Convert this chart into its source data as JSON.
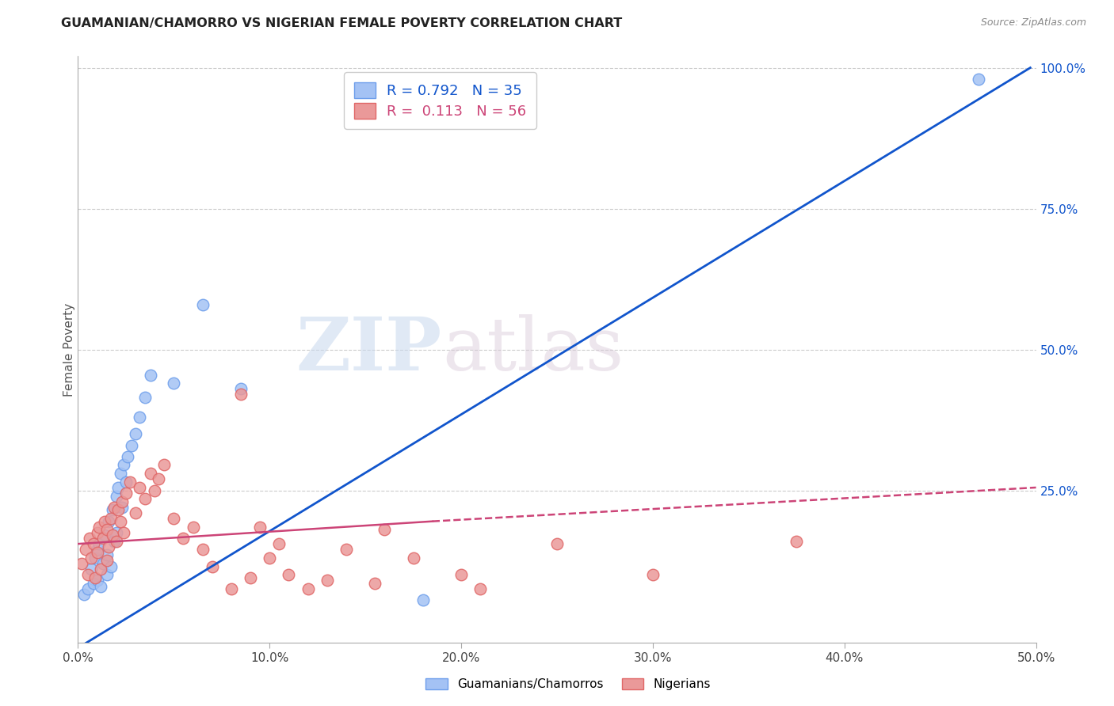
{
  "title": "GUAMANIAN/CHAMORRO VS NIGERIAN FEMALE POVERTY CORRELATION CHART",
  "source": "Source: ZipAtlas.com",
  "ylabel": "Female Poverty",
  "xlim": [
    0.0,
    0.5
  ],
  "ylim": [
    -0.02,
    1.02
  ],
  "xtick_labels": [
    "0.0%",
    "10.0%",
    "20.0%",
    "30.0%",
    "40.0%",
    "50.0%"
  ],
  "xtick_vals": [
    0.0,
    0.1,
    0.2,
    0.3,
    0.4,
    0.5
  ],
  "ytick_labels": [
    "100.0%",
    "75.0%",
    "50.0%",
    "25.0%"
  ],
  "ytick_vals": [
    1.0,
    0.75,
    0.5,
    0.25
  ],
  "blue_R": "0.792",
  "blue_N": "35",
  "pink_R": "0.113",
  "pink_N": "56",
  "legend_label_blue": "Guamanians/Chamorros",
  "legend_label_pink": "Nigerians",
  "watermark_zip": "ZIP",
  "watermark_atlas": "atlas",
  "blue_color": "#a4c2f4",
  "pink_color": "#ea9999",
  "blue_edge_color": "#6d9eeb",
  "pink_edge_color": "#e06666",
  "blue_line_color": "#1155cc",
  "pink_line_color": "#cc4477",
  "background_color": "#ffffff",
  "grid_color": "#cccccc",
  "blue_line_x0": -0.005,
  "blue_line_x1": 0.497,
  "blue_line_y0": -0.04,
  "blue_line_y1": 1.0,
  "pink_line_x0": 0.0,
  "pink_line_solid_x1": 0.185,
  "pink_line_dash_x1": 0.5,
  "pink_line_y0": 0.155,
  "pink_line_y_solid1": 0.195,
  "pink_line_y_dash1": 0.255,
  "blue_scatter_x": [
    0.003,
    0.005,
    0.007,
    0.008,
    0.009,
    0.01,
    0.01,
    0.011,
    0.012,
    0.013,
    0.014,
    0.015,
    0.015,
    0.016,
    0.017,
    0.018,
    0.019,
    0.02,
    0.02,
    0.021,
    0.022,
    0.023,
    0.024,
    0.025,
    0.026,
    0.028,
    0.03,
    0.032,
    0.035,
    0.038,
    0.05,
    0.065,
    0.085,
    0.18,
    0.47
  ],
  "blue_scatter_y": [
    0.065,
    0.075,
    0.11,
    0.085,
    0.13,
    0.145,
    0.09,
    0.155,
    0.08,
    0.12,
    0.17,
    0.1,
    0.135,
    0.195,
    0.115,
    0.215,
    0.16,
    0.24,
    0.175,
    0.255,
    0.28,
    0.22,
    0.295,
    0.265,
    0.31,
    0.33,
    0.35,
    0.38,
    0.415,
    0.455,
    0.44,
    0.58,
    0.43,
    0.055,
    0.98
  ],
  "pink_scatter_x": [
    0.002,
    0.004,
    0.005,
    0.006,
    0.007,
    0.008,
    0.009,
    0.01,
    0.01,
    0.011,
    0.012,
    0.013,
    0.014,
    0.015,
    0.015,
    0.016,
    0.017,
    0.018,
    0.019,
    0.02,
    0.021,
    0.022,
    0.023,
    0.024,
    0.025,
    0.027,
    0.03,
    0.032,
    0.035,
    0.038,
    0.04,
    0.042,
    0.045,
    0.05,
    0.055,
    0.06,
    0.065,
    0.07,
    0.08,
    0.085,
    0.09,
    0.095,
    0.1,
    0.105,
    0.11,
    0.12,
    0.13,
    0.14,
    0.155,
    0.16,
    0.175,
    0.2,
    0.21,
    0.25,
    0.3,
    0.375
  ],
  "pink_scatter_y": [
    0.12,
    0.145,
    0.1,
    0.165,
    0.13,
    0.155,
    0.095,
    0.175,
    0.14,
    0.185,
    0.11,
    0.165,
    0.195,
    0.125,
    0.18,
    0.15,
    0.2,
    0.17,
    0.22,
    0.16,
    0.215,
    0.195,
    0.23,
    0.175,
    0.245,
    0.265,
    0.21,
    0.255,
    0.235,
    0.28,
    0.25,
    0.27,
    0.295,
    0.2,
    0.165,
    0.185,
    0.145,
    0.115,
    0.075,
    0.42,
    0.095,
    0.185,
    0.13,
    0.155,
    0.1,
    0.075,
    0.09,
    0.145,
    0.085,
    0.18,
    0.13,
    0.1,
    0.075,
    0.155,
    0.1,
    0.16
  ]
}
